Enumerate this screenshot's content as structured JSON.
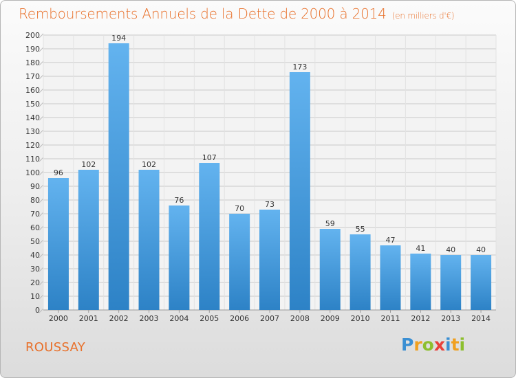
{
  "title": "Remboursements Annuels de la Dette de 2000 à 2014",
  "unit_label": "(en milliers d'€)",
  "commune": "ROUSSAY",
  "logo": {
    "text": "Proxiti",
    "letters": [
      {
        "ch": "P",
        "color": "#3a8fd3"
      },
      {
        "ch": "r",
        "color": "#f0a020"
      },
      {
        "ch": "o",
        "color": "#8dbf2e"
      },
      {
        "ch": "x",
        "color": "#e8403a"
      },
      {
        "ch": "i",
        "color": "#3a8fd3"
      },
      {
        "ch": "t",
        "color": "#f0a020"
      },
      {
        "ch": "i",
        "color": "#8dbf2e"
      }
    ]
  },
  "colors": {
    "title": "#e8702a",
    "bar_top": "#63b3ef",
    "bar_bottom": "#2d82c6",
    "grid": "#c8c8c8",
    "axis_text": "#333333"
  },
  "chart_data": {
    "type": "bar",
    "categories": [
      "2000",
      "2001",
      "2002",
      "2003",
      "2004",
      "2005",
      "2006",
      "2007",
      "2008",
      "2009",
      "2010",
      "2011",
      "2012",
      "2013",
      "2014"
    ],
    "values": [
      96,
      102,
      194,
      102,
      76,
      107,
      70,
      73,
      173,
      59,
      55,
      47,
      41,
      40,
      40
    ],
    "ylim": [
      0,
      200
    ],
    "ytick_step": 10,
    "grid": true
  }
}
